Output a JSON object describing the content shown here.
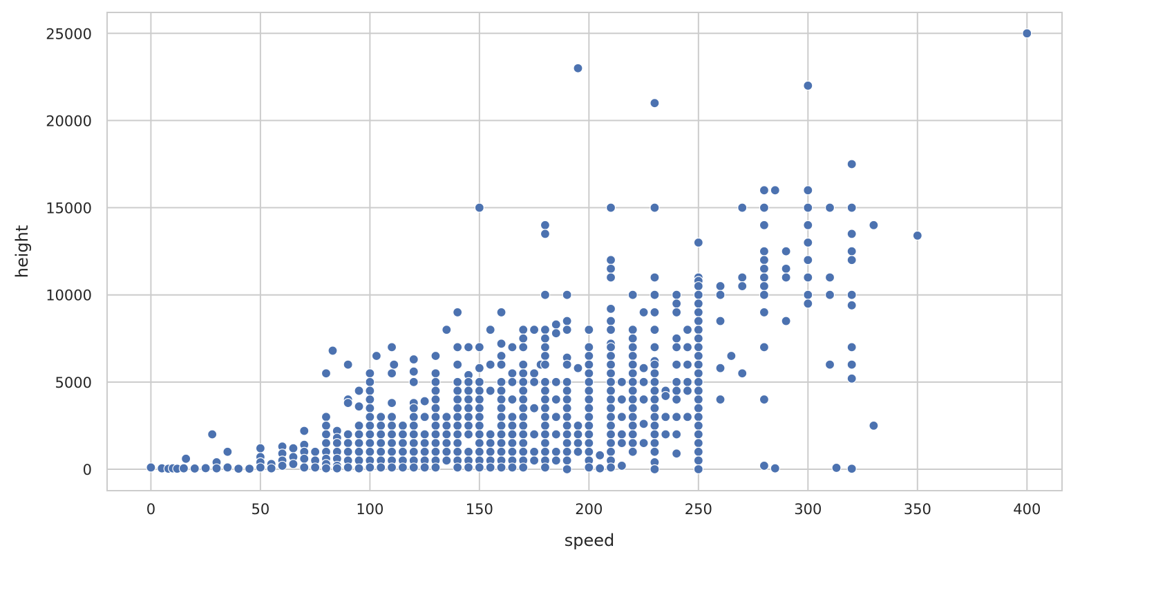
{
  "chart_data": {
    "type": "scatter",
    "title": "",
    "xlabel": "speed",
    "ylabel": "height",
    "xlim": [
      -20,
      416
    ],
    "ylim": [
      -1230,
      26200
    ],
    "xticks": [
      0,
      50,
      100,
      150,
      200,
      250,
      300,
      350,
      400
    ],
    "yticks": [
      0,
      5000,
      10000,
      15000,
      20000,
      25000
    ],
    "grid": true,
    "legend": "none",
    "colors": {
      "marker": "#4c72b0",
      "marker_edge": "#ffffff",
      "grid": "#cccccc",
      "spine": "#cccccc"
    },
    "columns": [
      {
        "x": 0,
        "y": [
          100
        ]
      },
      {
        "x": 5,
        "y": [
          50
        ]
      },
      {
        "x": 8,
        "y": [
          30
        ]
      },
      {
        "x": 10,
        "y": [
          50
        ]
      },
      {
        "x": 12,
        "y": [
          30
        ]
      },
      {
        "x": 15,
        "y": [
          50
        ]
      },
      {
        "x": 16,
        "y": [
          600
        ]
      },
      {
        "x": 20,
        "y": [
          40
        ]
      },
      {
        "x": 25,
        "y": [
          60
        ]
      },
      {
        "x": 28,
        "y": [
          2000
        ]
      },
      {
        "x": 30,
        "y": [
          400,
          50
        ]
      },
      {
        "x": 35,
        "y": [
          1000,
          100
        ]
      },
      {
        "x": 40,
        "y": [
          30
        ]
      },
      {
        "x": 45,
        "y": [
          30
        ]
      },
      {
        "x": 50,
        "y": [
          1200,
          700,
          400,
          100
        ]
      },
      {
        "x": 55,
        "y": [
          300,
          50
        ]
      },
      {
        "x": 60,
        "y": [
          1300,
          900,
          500,
          200
        ]
      },
      {
        "x": 65,
        "y": [
          1200,
          700,
          300
        ]
      },
      {
        "x": 70,
        "y": [
          2200,
          1400,
          1000,
          600,
          100
        ]
      },
      {
        "x": 75,
        "y": [
          1000,
          500,
          100
        ]
      },
      {
        "x": 80,
        "y": [
          5500,
          3000,
          2500,
          2000,
          1500,
          1000,
          600,
          300,
          50
        ]
      },
      {
        "x": 83,
        "y": [
          6800
        ]
      },
      {
        "x": 85,
        "y": [
          2200,
          1800,
          1500,
          1000,
          600,
          200,
          50
        ]
      },
      {
        "x": 90,
        "y": [
          6000,
          4000,
          3800,
          2000,
          1500,
          1000,
          500,
          100
        ]
      },
      {
        "x": 95,
        "y": [
          4500,
          3600,
          2500,
          2000,
          1500,
          1000,
          500,
          50
        ]
      },
      {
        "x": 100,
        "y": [
          5500,
          5000,
          4500,
          4000,
          3500,
          3000,
          2500,
          2000,
          1500,
          1000,
          500,
          100
        ]
      },
      {
        "x": 103,
        "y": [
          6500
        ]
      },
      {
        "x": 105,
        "y": [
          3000,
          2500,
          2000,
          1500,
          1000,
          500,
          100
        ]
      },
      {
        "x": 110,
        "y": [
          7000,
          5500,
          3800,
          3000,
          2500,
          2000,
          1500,
          1000,
          500,
          100
        ]
      },
      {
        "x": 111,
        "y": [
          6000
        ]
      },
      {
        "x": 115,
        "y": [
          2500,
          2000,
          1500,
          1000,
          500,
          100
        ]
      },
      {
        "x": 120,
        "y": [
          6300,
          5600,
          5000,
          3800,
          3500,
          3000,
          2500,
          2000,
          1500,
          1000,
          500,
          100
        ]
      },
      {
        "x": 125,
        "y": [
          3900,
          3000,
          2000,
          1500,
          1000,
          500,
          100
        ]
      },
      {
        "x": 130,
        "y": [
          6500,
          5500,
          5000,
          4500,
          4000,
          3500,
          3000,
          2500,
          2000,
          1500,
          1000,
          500,
          100
        ]
      },
      {
        "x": 135,
        "y": [
          8000,
          3000,
          2500,
          2000,
          1500,
          1000,
          500
        ]
      },
      {
        "x": 140,
        "y": [
          9000,
          7000,
          6000,
          5000,
          4500,
          4000,
          3500,
          3000,
          2500,
          2000,
          1500,
          1000,
          500,
          100
        ]
      },
      {
        "x": 145,
        "y": [
          7000,
          5400,
          5000,
          4500,
          4000,
          3500,
          3000,
          2500,
          2000,
          1000,
          500,
          100
        ]
      },
      {
        "x": 150,
        "y": [
          15000,
          7000,
          5800,
          5000,
          4500,
          4000,
          3500,
          3000,
          2500,
          2000,
          1500,
          1000,
          500,
          100
        ]
      },
      {
        "x": 155,
        "y": [
          8000,
          6000,
          4500,
          2000,
          1500,
          1000,
          500,
          100
        ]
      },
      {
        "x": 160,
        "y": [
          9000,
          7200,
          6500,
          6000,
          5000,
          4500,
          4000,
          3500,
          3000,
          2500,
          2000,
          1500,
          1000,
          500,
          100
        ]
      },
      {
        "x": 165,
        "y": [
          7000,
          5500,
          5000,
          4000,
          3000,
          2500,
          2000,
          1500,
          1000,
          500,
          100
        ]
      },
      {
        "x": 170,
        "y": [
          8000,
          7500,
          7000,
          6000,
          5500,
          5000,
          4500,
          4000,
          3500,
          3000,
          2500,
          2000,
          1500,
          1000,
          500,
          100
        ]
      },
      {
        "x": 175,
        "y": [
          8000,
          5500,
          5000,
          3500,
          2000,
          1000,
          500
        ]
      },
      {
        "x": 178,
        "y": [
          6000
        ]
      },
      {
        "x": 180,
        "y": [
          14000,
          13500,
          10000,
          8000,
          7500,
          7000,
          6500,
          6000,
          5000,
          4500,
          4000,
          3500,
          3000,
          2500,
          2000,
          1500,
          1000,
          500,
          100
        ]
      },
      {
        "x": 185,
        "y": [
          8300,
          7800,
          5000,
          4000,
          3000,
          2000,
          1000,
          500
        ]
      },
      {
        "x": 190,
        "y": [
          10000,
          8500,
          8000,
          6400,
          6000,
          5000,
          4500,
          4000,
          3500,
          3000,
          2500,
          2000,
          1500,
          1000,
          500,
          0
        ]
      },
      {
        "x": 195,
        "y": [
          23000,
          5800,
          2500,
          2000,
          1500,
          1000
        ]
      },
      {
        "x": 200,
        "y": [
          8000,
          7000,
          6500,
          6000,
          5500,
          5000,
          4500,
          4000,
          3500,
          3000,
          2500,
          2000,
          1500,
          1000,
          500,
          100
        ]
      },
      {
        "x": 205,
        "y": [
          800,
          50
        ]
      },
      {
        "x": 210,
        "y": [
          15000,
          12000,
          11500,
          11000,
          9200,
          8500,
          8000,
          7200,
          7000,
          6500,
          6000,
          5500,
          5000,
          4500,
          4000,
          3500,
          3000,
          2500,
          2000,
          1500,
          1000,
          500,
          100
        ]
      },
      {
        "x": 215,
        "y": [
          5000,
          4000,
          3000,
          2000,
          1500,
          200
        ]
      },
      {
        "x": 220,
        "y": [
          10000,
          8000,
          7500,
          7000,
          6500,
          6000,
          5500,
          5000,
          4500,
          4000,
          3500,
          3000,
          2500,
          2000,
          1500,
          1000
        ]
      },
      {
        "x": 225,
        "y": [
          9000,
          5800,
          5000,
          4000,
          2600,
          1500
        ]
      },
      {
        "x": 230,
        "y": [
          21000,
          15000,
          11000,
          10000,
          9000,
          8000,
          7000,
          6200,
          6000,
          5500,
          5000,
          4500,
          4000,
          3500,
          3000,
          2500,
          2000,
          1500,
          1000,
          400,
          0
        ]
      },
      {
        "x": 235,
        "y": [
          4500,
          4200,
          3000,
          2000
        ]
      },
      {
        "x": 240,
        "y": [
          10000,
          9500,
          9000,
          7500,
          7000,
          6000,
          5000,
          4500,
          4000,
          3000,
          2000,
          900
        ]
      },
      {
        "x": 245,
        "y": [
          8000,
          7000,
          6000,
          5000,
          4500,
          3000
        ]
      },
      {
        "x": 250,
        "y": [
          13000,
          11000,
          10800,
          10500,
          10000,
          9500,
          9000,
          8500,
          8000,
          7500,
          7000,
          6500,
          6000,
          5500,
          5000,
          4500,
          4000,
          3500,
          3000,
          2500,
          2000,
          1500,
          1000,
          500,
          0
        ]
      },
      {
        "x": 260,
        "y": [
          10500,
          10000,
          8500,
          5800,
          4000
        ]
      },
      {
        "x": 265,
        "y": [
          6500
        ]
      },
      {
        "x": 270,
        "y": [
          15000,
          11000,
          10500,
          5500
        ]
      },
      {
        "x": 280,
        "y": [
          16000,
          15000,
          14000,
          12500,
          12000,
          11500,
          11000,
          10500,
          10000,
          9000,
          7000,
          4000,
          200
        ]
      },
      {
        "x": 285,
        "y": [
          16000,
          50
        ]
      },
      {
        "x": 290,
        "y": [
          12500,
          11500,
          11000,
          8500
        ]
      },
      {
        "x": 300,
        "y": [
          22000,
          16000,
          15000,
          14000,
          13000,
          12000,
          11000,
          10000,
          9500
        ]
      },
      {
        "x": 310,
        "y": [
          15000,
          11000,
          10000,
          6000
        ]
      },
      {
        "x": 313,
        "y": [
          80
        ]
      },
      {
        "x": 320,
        "y": [
          17500,
          15000,
          13500,
          12500,
          12000,
          10000,
          9400,
          7000,
          6000,
          5200,
          30
        ]
      },
      {
        "x": 330,
        "y": [
          14000,
          2500
        ]
      },
      {
        "x": 350,
        "y": [
          13400
        ]
      },
      {
        "x": 400,
        "y": [
          25000
        ]
      }
    ]
  }
}
